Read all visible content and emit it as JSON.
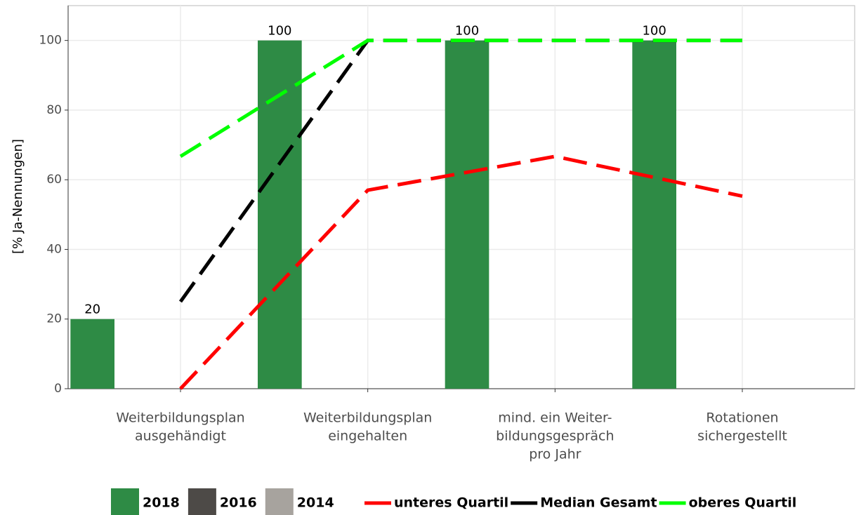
{
  "chart_data": {
    "type": "bar",
    "y_label": "[% Ja-Nennungen]",
    "categories": [
      [
        "Weiterbildungsplan",
        "ausgehändigt"
      ],
      [
        "Weiterbildungsplan",
        "eingehalten"
      ],
      [
        "mind. ein Weiter-",
        "bildungsgespräch",
        "pro Jahr"
      ],
      [
        "Rotationen",
        "sichergestellt"
      ]
    ],
    "series": [
      {
        "name": "2018",
        "color": "#2e8b45",
        "values": [
          20,
          100,
          100,
          100
        ]
      },
      {
        "name": "2016",
        "color": "#4d4a47",
        "values": [
          null,
          null,
          null,
          null
        ]
      },
      {
        "name": "2014",
        "color": "#a7a39e",
        "values": [
          null,
          null,
          null,
          null
        ]
      }
    ],
    "lines": [
      {
        "name": "unteres Quartil",
        "color": "#ff0000",
        "values": [
          0,
          57,
          66.7,
          55.3
        ]
      },
      {
        "name": "Median Gesamt",
        "color": "#000000",
        "values": [
          25,
          100,
          100,
          100
        ]
      },
      {
        "name": "oberes Quartil",
        "color": "#00ff00",
        "values": [
          66.7,
          100,
          100,
          100
        ]
      }
    ],
    "ylim": [
      0,
      110
    ],
    "yticks": [
      0,
      20,
      40,
      60,
      80,
      100
    ],
    "grid": true
  }
}
